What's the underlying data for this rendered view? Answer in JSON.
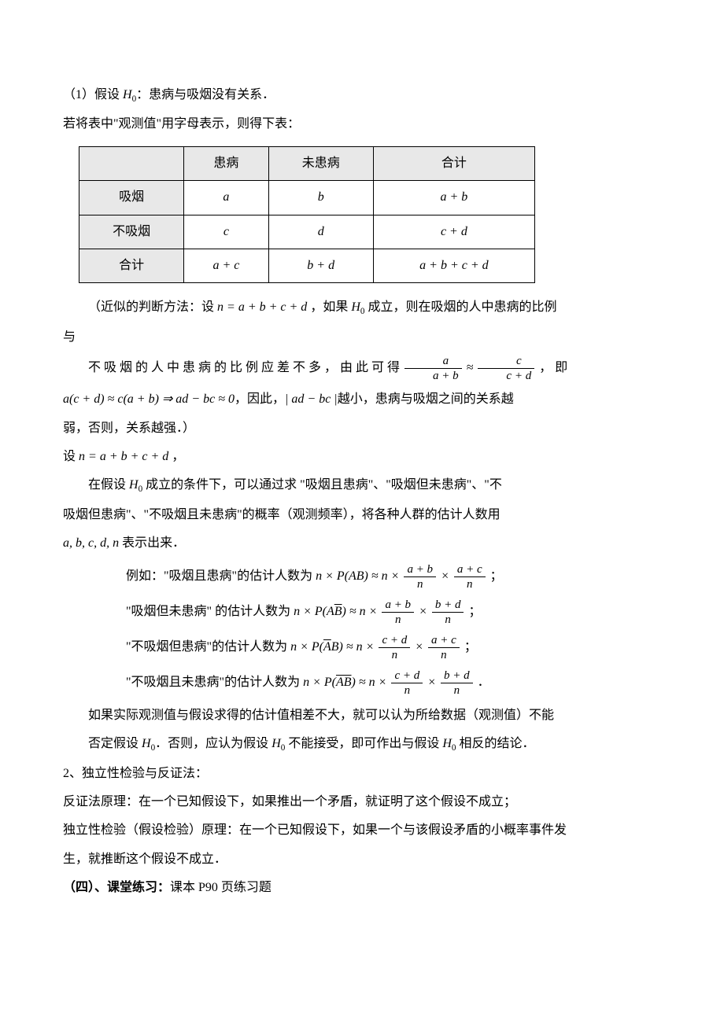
{
  "p1_prefix": "（1）假设 ",
  "p1_hyp": "H",
  "p1_sub": "0",
  "p1_colon": "：患病与吸烟没有关系．",
  "p2": "若将表中\"观测值\"用字母表示，则得下表：",
  "table": {
    "headers": [
      "",
      "患病",
      "未患病",
      "合计"
    ],
    "rows": [
      [
        "吸烟",
        "a",
        "b",
        "a + b"
      ],
      [
        "不吸烟",
        "c",
        "d",
        "c + d"
      ],
      [
        "合计",
        "a + c",
        "b + d",
        "a + b + c + d"
      ]
    ]
  },
  "p3_a": "（近似的判断方法：设 ",
  "p3_b": "n = a + b + c + d",
  "p3_c": " ，如果 ",
  "p3_d": " 成立，则在吸烟的人中患病的比例",
  "p3_e": "与",
  "p4_a": "不 吸 烟 的 人 中 患 病 的 比 例 应 差 不 多 ， 由 此 可 得  ",
  "p4_b": " ， 即",
  "frac1_num": "a",
  "frac1_den": "a + b",
  "frac2_num": "c",
  "frac2_den": "c + d",
  "approx": " ≈ ",
  "p5_a": "a(c + d) ≈ c(a + b) ⇒ ad − bc ≈ 0",
  "p5_b": "，因此，",
  "p5_c": "| ad − bc |",
  "p5_d": "越小，患病与吸烟之间的关系越",
  "p5_e": "弱，否则，关系越强．）",
  "p6_a": "设 ",
  "p6_b": "n = a + b + c + d",
  "p6_c": " ，",
  "p7_a": "在假设 ",
  "p7_b": " 成立的条件下，可以通过求 \"吸烟且患病\"、\"吸烟但未患病\"、\"不",
  "p7_c": "吸烟但患病\"、\"不吸烟且未患病\"的概率（观测频率），将各种人群的估计人数用",
  "p7_d": "a, b, c, d, n",
  "p7_e": " 表示出来．",
  "ex_lead": "例如：\"吸烟且患病\"的估计人数为 ",
  "ex1_formula": "n × P(AB) ≈ n ×",
  "ex_ab_num": "a + b",
  "ex_ac_num": "a + c",
  "ex_bd_num": "b + d",
  "ex_cd_num": "c + d",
  "ex_n": "n",
  "ex2_lead": "\"吸烟但未患病\" 的估计人数为 ",
  "ex2_formula_a": "n × P(A",
  "ex2_formula_b": ") ≈ n ×",
  "ex3_lead": "\"不吸烟但患病\"的估计人数为 ",
  "ex3_formula_a": "n × P(",
  "ex3_formula_b": "B) ≈ n ×",
  "ex4_lead": "\"不吸烟且未患病\"的估计人数为 ",
  "ex4_formula_a": "n × P(",
  "ex4_formula_b": ") ≈ n ×",
  "overA": "A",
  "overB": "B",
  "overAB": "AB",
  "times": " × ",
  "semicolon": " ；",
  "period": " ．",
  "p8": "如果实际观测值与假设求得的估计值相差不大，就可以认为所给数据（观测值）不能",
  "p9_a": "否定假设 ",
  "p9_b": "．否则，应认为假设 ",
  "p9_c": " 不能接受，即可作出与假设 ",
  "p9_d": " 相反的结论．",
  "p10": "2、独立性检验与反证法：",
  "p11": "反证法原理：在一个已知假设下，如果推出一个矛盾，就证明了这个假设不成立；",
  "p12": "独立性检验（假设检验）原理：在一个已知假设下，如果一个与该假设矛盾的小概率事件发",
  "p12b": "生，就推断这个假设不成立．",
  "p13_a": "（四）、课堂练习：",
  "p13_b": "课本 P90 页练习题"
}
